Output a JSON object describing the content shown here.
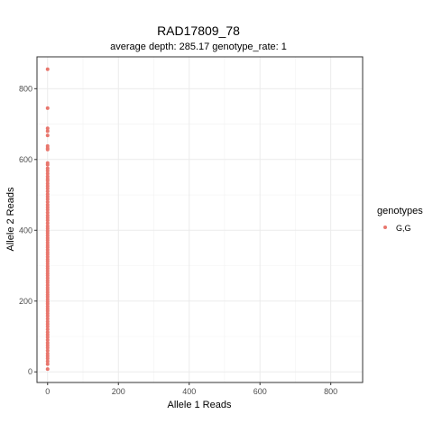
{
  "chart_data": {
    "type": "scatter",
    "title": "RAD17809_78",
    "subtitle": "average depth:  285.17  genotype_rate:  1",
    "xlabel": "Allele 1 Reads",
    "ylabel": "Allele 2 Reads",
    "xlim": [
      -30,
      890
    ],
    "ylim": [
      -30,
      890
    ],
    "xticks": [
      0,
      200,
      400,
      600,
      800
    ],
    "yticks": [
      0,
      200,
      400,
      600,
      800
    ],
    "grid": true,
    "legend": {
      "title": "genotypes",
      "position": "right",
      "entries": [
        {
          "label": "G,G",
          "color": "#E8766D"
        }
      ]
    },
    "series": [
      {
        "name": "G,G",
        "color": "#E8766D",
        "x": [
          0,
          0,
          0,
          0,
          0,
          0,
          0,
          0,
          0,
          0,
          0,
          0,
          0,
          0,
          0,
          0,
          0,
          0,
          0,
          0,
          0,
          0,
          0,
          0,
          0,
          0,
          0,
          0,
          0,
          0,
          0,
          0,
          0,
          0,
          0,
          0,
          0,
          0,
          0,
          0,
          0,
          0,
          0,
          0,
          0,
          0,
          0,
          0,
          0,
          0,
          0,
          0,
          0,
          0,
          0,
          0,
          0,
          0,
          0,
          0,
          0,
          0,
          0,
          0,
          0,
          0,
          0,
          0,
          0,
          0,
          0,
          0,
          0,
          0,
          0,
          0,
          0,
          0,
          0,
          0,
          0,
          0,
          0,
          0,
          0,
          0,
          0,
          0,
          0,
          0
        ],
        "y": [
          855,
          745,
          688,
          680,
          668,
          638,
          632,
          628,
          590,
          585,
          575,
          568,
          560,
          552,
          545,
          540,
          532,
          525,
          518,
          510,
          502,
          495,
          488,
          480,
          472,
          465,
          458,
          450,
          442,
          435,
          428,
          420,
          412,
          405,
          398,
          392,
          385,
          378,
          372,
          365,
          358,
          352,
          345,
          338,
          332,
          325,
          318,
          312,
          305,
          298,
          292,
          285,
          278,
          272,
          265,
          258,
          252,
          245,
          238,
          232,
          225,
          218,
          212,
          205,
          198,
          192,
          185,
          178,
          172,
          165,
          158,
          150,
          142,
          135,
          128,
          120,
          112,
          105,
          98,
          90,
          82,
          75,
          68,
          60,
          52,
          45,
          38,
          30,
          22,
          8
        ]
      }
    ]
  }
}
